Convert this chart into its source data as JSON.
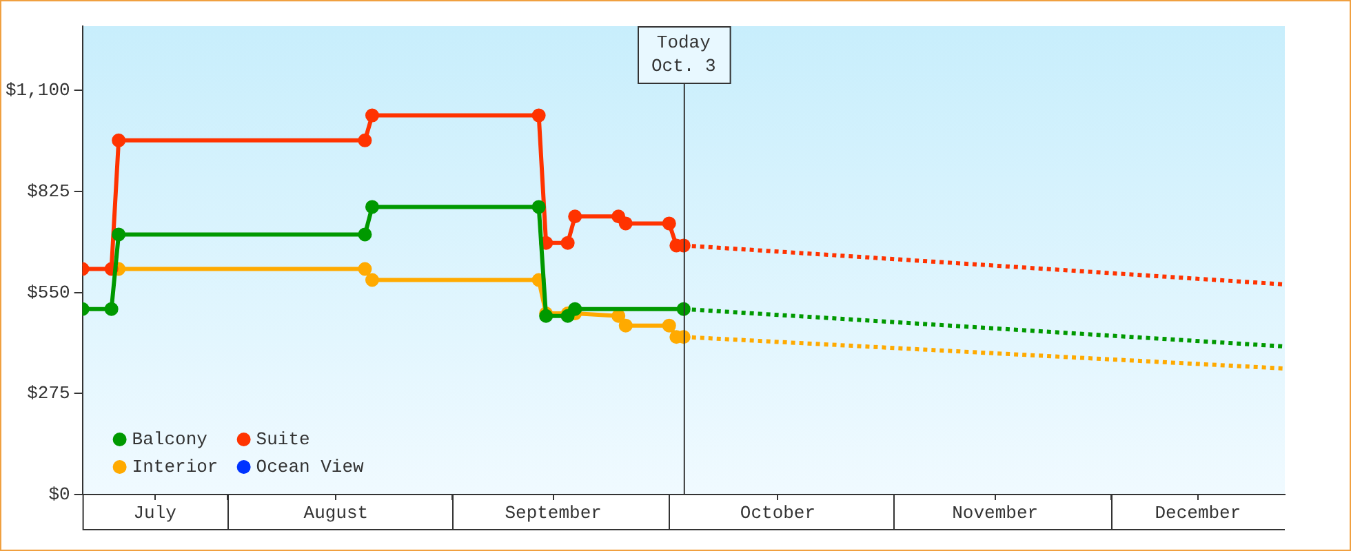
{
  "chart_data": {
    "type": "line",
    "xlim": [
      "--07-12",
      "--12-25"
    ],
    "xticks": [
      {
        "value": "--07-22",
        "label": "July"
      },
      {
        "value": "--08-01",
        "label": null
      },
      {
        "value": "--08-16",
        "label": "August"
      },
      {
        "value": "--09-01",
        "label": null
      },
      {
        "value": "--09-15",
        "label": "September"
      },
      {
        "value": "--10-01",
        "label": null
      },
      {
        "value": "--10-16",
        "label": "October"
      },
      {
        "value": "--11-01",
        "label": null
      },
      {
        "value": "--11-15",
        "label": "November"
      },
      {
        "value": "--12-01",
        "label": null
      },
      {
        "value": "--12-13",
        "label": "December"
      }
    ],
    "ylim": [
      0,
      1275
    ],
    "yticks": [
      {
        "value": 0,
        "label": "$0"
      },
      {
        "value": 275,
        "label": "$275"
      },
      {
        "value": 550,
        "label": "$550"
      },
      {
        "value": 825,
        "label": "$825"
      },
      {
        "value": 1100,
        "label": "$1,100"
      }
    ],
    "legend": "bottom left",
    "marker": "circle",
    "line_style": "solid",
    "ref_lines": [
      {
        "axis": "x",
        "value": "--10-03",
        "label": "Today\nOct. 3",
        "color": "#333333"
      }
    ],
    "series": [
      {
        "name": "Balcony",
        "color": "#009900",
        "x": [
          "--07-12",
          "--07-16",
          "--07-17",
          "--08-20",
          "--08-21",
          "--09-13",
          "--09-14",
          "--09-17",
          "--09-18",
          "--10-03"
        ],
        "values": [
          505,
          505,
          708,
          708,
          783,
          783,
          486,
          486,
          505,
          505
        ]
      },
      {
        "name": "Suite",
        "color": "#ff3300",
        "x": [
          "--07-12",
          "--07-16",
          "--07-17",
          "--08-20",
          "--08-21",
          "--09-13",
          "--09-14",
          "--09-17",
          "--09-18",
          "--09-24",
          "--09-25",
          "--10-01",
          "--10-02",
          "--10-03"
        ],
        "values": [
          614,
          614,
          964,
          964,
          1032,
          1032,
          685,
          685,
          757,
          757,
          738,
          738,
          678,
          678
        ]
      },
      {
        "name": "Interior",
        "color": "#ffaa00",
        "x": [
          "--07-17",
          "--08-20",
          "--08-21",
          "--09-13",
          "--09-14",
          "--09-17",
          "--09-18",
          "--09-24",
          "--09-25",
          "--10-01",
          "--10-02",
          "--10-03"
        ],
        "values": [
          614,
          614,
          584,
          584,
          493,
          493,
          493,
          486,
          460,
          460,
          429,
          429
        ]
      },
      {
        "name": "Ocean View",
        "color": "#0033ff"
      },
      {
        "color": "#009900",
        "x": [
          "--10-03",
          "--12-25"
        ],
        "values": [
          505,
          403
        ],
        "line_style": "dotted",
        "marker": "none"
      },
      {
        "color": "#ff3300",
        "x": [
          "--10-03",
          "--12-25"
        ],
        "values": [
          678,
          572
        ],
        "line_style": "dotted",
        "marker": "none"
      },
      {
        "color": "#ffaa00",
        "x": [
          "--10-03",
          "--12-25"
        ],
        "values": [
          429,
          343
        ],
        "line_style": "dotted",
        "marker": "none"
      }
    ]
  }
}
